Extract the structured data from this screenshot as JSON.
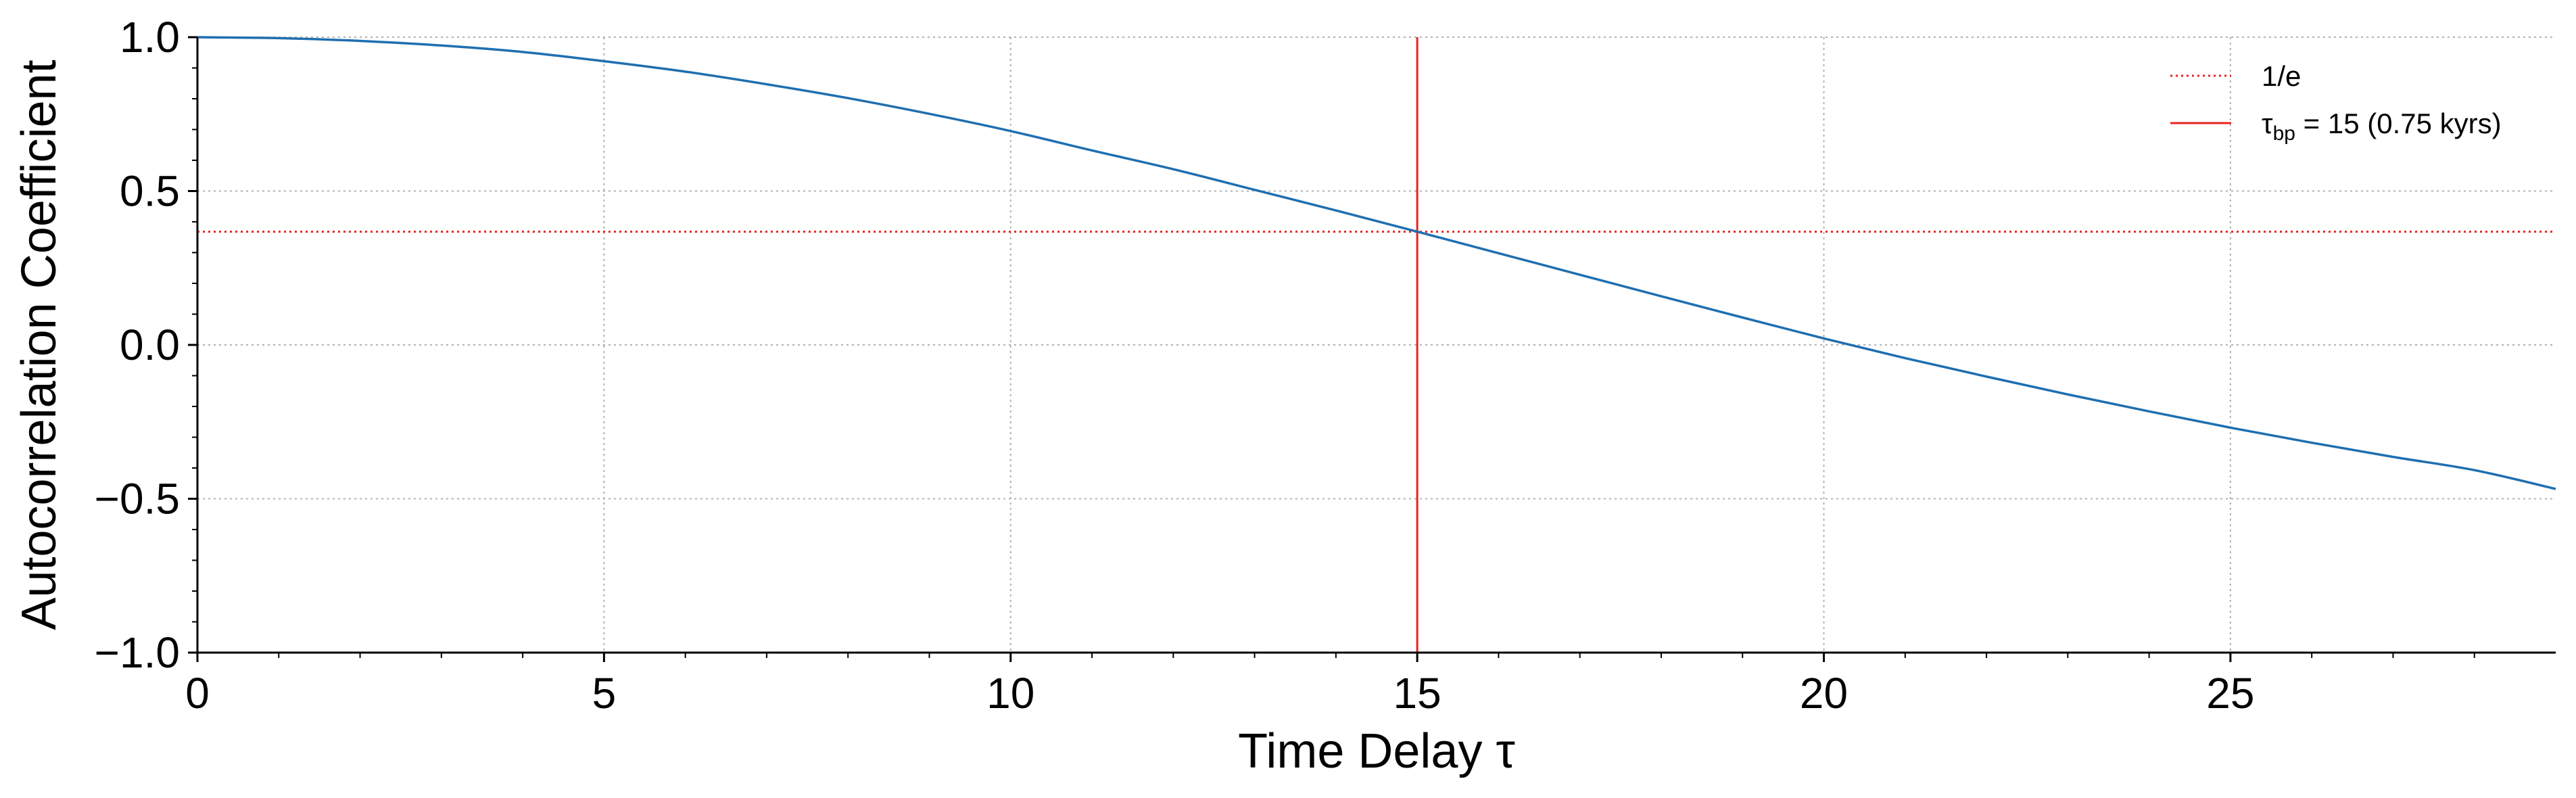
{
  "chart_data": {
    "type": "line",
    "xlabel": "Time Delay τ",
    "ylabel": "Autocorrelation Coefficient",
    "xlim": [
      0,
      29
    ],
    "ylim": [
      -1.0,
      1.0
    ],
    "xticks": [
      0,
      5,
      10,
      15,
      20,
      25
    ],
    "xtick_labels": [
      "0",
      "5",
      "10",
      "15",
      "20",
      "25"
    ],
    "yticks": [
      -1.0,
      -0.5,
      0.0,
      0.5,
      1.0
    ],
    "ytick_labels": [
      "−1.0",
      "−0.5",
      "0.0",
      "0.5",
      "1.0"
    ],
    "grid": true,
    "legend_position": "top-right",
    "series": [
      {
        "color": "#1f6fb0",
        "style": "solid",
        "x": [
          0,
          1,
          2,
          3,
          4,
          5,
          6,
          7,
          8,
          9,
          10,
          11,
          12,
          13,
          14,
          15,
          16,
          17,
          18,
          19,
          20,
          21,
          22,
          23,
          24,
          25,
          26,
          27,
          28,
          29
        ],
        "y": [
          1.0,
          0.997,
          0.988,
          0.973,
          0.952,
          0.922,
          0.888,
          0.847,
          0.802,
          0.751,
          0.695,
          0.632,
          0.571,
          0.504,
          0.437,
          0.368,
          0.298,
          0.228,
          0.158,
          0.089,
          0.021,
          -0.043,
          -0.103,
          -0.161,
          -0.216,
          -0.269,
          -0.318,
          -0.364,
          -0.407,
          -0.468
        ]
      }
    ],
    "reference_lines": [
      {
        "orientation": "horizontal",
        "value": 0.3679,
        "color": "#e8231c",
        "style": "dotted",
        "label": "1/e"
      },
      {
        "orientation": "vertical",
        "value": 15,
        "color": "#e8231c",
        "style": "solid",
        "label_main": "τ",
        "label_sub": "bp",
        "label_rest": " = 15 (0.75 kyrs)"
      }
    ]
  }
}
